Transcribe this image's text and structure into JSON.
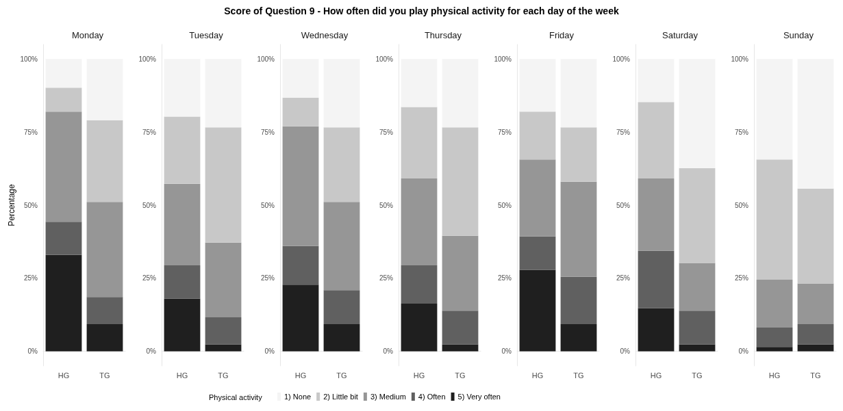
{
  "chart_data": [
    {
      "type": "bar",
      "subtitle": "Monday",
      "ylabel": "Percentage",
      "legend": "bottom",
      "legend_title": "Physical activity",
      "stacked": true,
      "categories": [
        "HG",
        "TG"
      ],
      "ylim": [
        -5,
        105
      ],
      "yticks": [
        {
          "value": 0,
          "label": "0%"
        },
        {
          "value": 25,
          "label": "25%"
        },
        {
          "value": 50,
          "label": "50%"
        },
        {
          "value": 75,
          "label": "75%"
        },
        {
          "value": 100,
          "label": "100%"
        }
      ],
      "series": [
        {
          "name": "5) Very often",
          "color": "#1f1f1f",
          "values": [
            33,
            9.3
          ]
        },
        {
          "name": "4) Often",
          "color": "#606060",
          "values": [
            11.3,
            9.3
          ]
        },
        {
          "name": "3) Medium",
          "color": "#969696",
          "values": [
            37.7,
            32.5
          ]
        },
        {
          "name": "2) Little bit",
          "color": "#c8c8c8",
          "values": [
            8.2,
            28
          ]
        },
        {
          "name": "1) None",
          "color": "#f4f4f4",
          "values": [
            9.8,
            20.9
          ]
        }
      ]
    },
    {
      "type": "bar",
      "subtitle": "Tuesday",
      "stacked": true,
      "categories": [
        "HG",
        "TG"
      ],
      "ylim": [
        -5,
        105
      ],
      "yticks": [
        {
          "value": 0,
          "label": "0%"
        },
        {
          "value": 25,
          "label": "25%"
        },
        {
          "value": 50,
          "label": "50%"
        },
        {
          "value": 75,
          "label": "75%"
        },
        {
          "value": 100,
          "label": "100%"
        }
      ],
      "series": [
        {
          "color": "#1f1f1f",
          "values": [
            18,
            2.3
          ]
        },
        {
          "color": "#606060",
          "values": [
            11.4,
            9.3
          ]
        },
        {
          "color": "#969696",
          "values": [
            27.9,
            25.6
          ]
        },
        {
          "color": "#c8c8c8",
          "values": [
            23,
            39.4
          ]
        },
        {
          "color": "#f4f4f4",
          "values": [
            19.7,
            23.4
          ]
        }
      ]
    },
    {
      "type": "bar",
      "subtitle": "Wednesday",
      "stacked": true,
      "categories": [
        "HG",
        "TG"
      ],
      "ylim": [
        -5,
        105
      ],
      "yticks": [
        {
          "value": 0,
          "label": "0%"
        },
        {
          "value": 25,
          "label": "25%"
        },
        {
          "value": 50,
          "label": "50%"
        },
        {
          "value": 75,
          "label": "75%"
        },
        {
          "value": 100,
          "label": "100%"
        }
      ],
      "series": [
        {
          "color": "#1f1f1f",
          "values": [
            22.8,
            9.3
          ]
        },
        {
          "color": "#606060",
          "values": [
            13.2,
            11.6
          ]
        },
        {
          "color": "#969696",
          "values": [
            41,
            30.2
          ]
        },
        {
          "color": "#c8c8c8",
          "values": [
            9.8,
            25.5
          ]
        },
        {
          "color": "#f4f4f4",
          "values": [
            13.2,
            23.4
          ]
        }
      ]
    },
    {
      "type": "bar",
      "title": "Score of Question 9 - How often did you play physical activity for each day of the week",
      "subtitle": "Thursday",
      "stacked": true,
      "categories": [
        "HG",
        "TG"
      ],
      "ylim": [
        -5,
        105
      ],
      "yticks": [
        {
          "value": 0,
          "label": "0%"
        },
        {
          "value": 25,
          "label": "25%"
        },
        {
          "value": 50,
          "label": "50%"
        },
        {
          "value": 75,
          "label": "75%"
        },
        {
          "value": 100,
          "label": "100%"
        }
      ],
      "series": [
        {
          "color": "#1f1f1f",
          "values": [
            16.3,
            2.3
          ]
        },
        {
          "color": "#606060",
          "values": [
            13.1,
            11.6
          ]
        },
        {
          "color": "#969696",
          "values": [
            29.7,
            25.6
          ]
        },
        {
          "color": "#c8c8c8",
          "values": [
            24.5,
            37.1
          ]
        },
        {
          "color": "#f4f4f4",
          "values": [
            16.4,
            23.4
          ]
        }
      ]
    },
    {
      "type": "bar",
      "subtitle": "Friday",
      "stacked": true,
      "categories": [
        "HG",
        "TG"
      ],
      "ylim": [
        -5,
        105
      ],
      "yticks": [
        {
          "value": 0,
          "label": "0%"
        },
        {
          "value": 25,
          "label": "25%"
        },
        {
          "value": 50,
          "label": "50%"
        },
        {
          "value": 75,
          "label": "75%"
        },
        {
          "value": 100,
          "label": "100%"
        }
      ],
      "series": [
        {
          "color": "#1f1f1f",
          "values": [
            27.9,
            9.3
          ]
        },
        {
          "color": "#606060",
          "values": [
            11.4,
            16.2
          ]
        },
        {
          "color": "#969696",
          "values": [
            26.3,
            32.5
          ]
        },
        {
          "color": "#c8c8c8",
          "values": [
            16.4,
            18.6
          ]
        },
        {
          "color": "#f4f4f4",
          "values": [
            18,
            23.4
          ]
        }
      ]
    },
    {
      "type": "bar",
      "subtitle": "Saturday",
      "stacked": true,
      "categories": [
        "HG",
        "TG"
      ],
      "ylim": [
        -5,
        105
      ],
      "yticks": [
        {
          "value": 0,
          "label": "0%"
        },
        {
          "value": 25,
          "label": "25%"
        },
        {
          "value": 50,
          "label": "50%"
        },
        {
          "value": 75,
          "label": "75%"
        },
        {
          "value": 100,
          "label": "100%"
        }
      ],
      "series": [
        {
          "color": "#1f1f1f",
          "values": [
            14.7,
            2.3
          ]
        },
        {
          "color": "#606060",
          "values": [
            19.7,
            11.6
          ]
        },
        {
          "color": "#969696",
          "values": [
            24.7,
            16.3
          ]
        },
        {
          "color": "#c8c8c8",
          "values": [
            26.2,
            32.5
          ]
        },
        {
          "color": "#f4f4f4",
          "values": [
            14.7,
            37.3
          ]
        }
      ]
    },
    {
      "type": "bar",
      "subtitle": "Sunday",
      "stacked": true,
      "categories": [
        "HG",
        "TG"
      ],
      "ylim": [
        -5,
        105
      ],
      "yticks": [
        {
          "value": 0,
          "label": "0%"
        },
        {
          "value": 25,
          "label": "25%"
        },
        {
          "value": 50,
          "label": "50%"
        },
        {
          "value": 75,
          "label": "75%"
        },
        {
          "value": 100,
          "label": "100%"
        }
      ],
      "series": [
        {
          "color": "#1f1f1f",
          "values": [
            1.5,
            2.3
          ]
        },
        {
          "color": "#606060",
          "values": [
            6.6,
            7
          ]
        },
        {
          "color": "#969696",
          "values": [
            16.4,
            13.9
          ]
        },
        {
          "color": "#c8c8c8",
          "values": [
            41.1,
            32.5
          ]
        },
        {
          "color": "#f4f4f4",
          "values": [
            34.4,
            44.3
          ]
        }
      ]
    }
  ]
}
